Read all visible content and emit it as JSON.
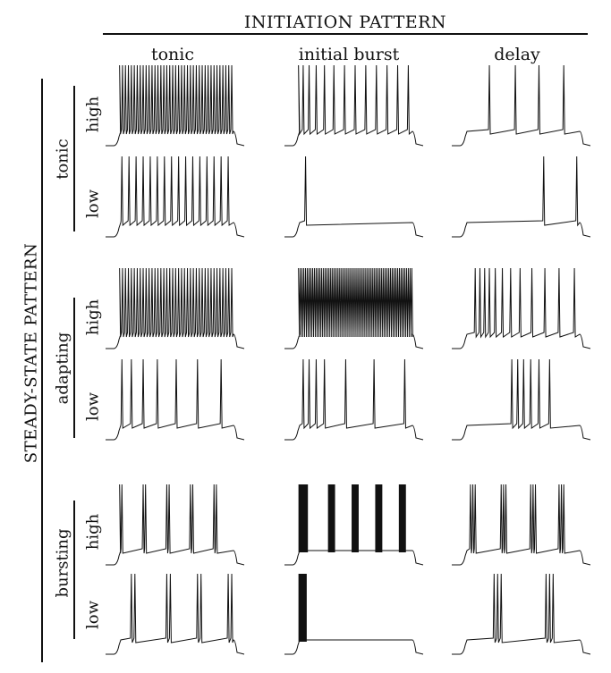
{
  "figure": {
    "title": "INITIATION PATTERN",
    "left_title": "STEADY-STATE PATTERN",
    "columns": [
      "tonic",
      "initial burst",
      "delay"
    ],
    "row_groups": [
      {
        "label": "tonic",
        "levels": [
          "high",
          "low"
        ]
      },
      {
        "label": "adapting",
        "levels": [
          "high",
          "low"
        ]
      },
      {
        "label": "bursting",
        "levels": [
          "high",
          "low"
        ]
      }
    ],
    "line_color": "#111111",
    "traces": [
      {
        "row": "tonic-high",
        "column": "tonic",
        "spike_times": [
          0.02,
          0.045,
          0.07,
          0.095,
          0.12,
          0.145,
          0.17,
          0.195,
          0.22,
          0.245,
          0.27,
          0.295,
          0.32,
          0.345,
          0.37,
          0.395,
          0.42,
          0.445,
          0.47,
          0.495,
          0.52,
          0.545,
          0.57,
          0.595,
          0.62,
          0.645,
          0.67,
          0.695,
          0.72,
          0.745,
          0.77,
          0.795,
          0.82,
          0.845,
          0.87,
          0.895,
          0.92,
          0.945,
          0.97
        ],
        "burst_times": []
      },
      {
        "row": "tonic-high",
        "column": "initial burst",
        "spike_times": [
          0.02,
          0.06,
          0.11,
          0.17,
          0.24,
          0.32,
          0.41,
          0.5,
          0.59,
          0.68,
          0.77,
          0.86,
          0.95
        ],
        "burst_times": []
      },
      {
        "row": "tonic-high",
        "column": "delay",
        "spike_times": [
          0.22,
          0.44,
          0.64,
          0.85
        ],
        "burst_times": []
      },
      {
        "row": "tonic-low",
        "column": "tonic",
        "spike_times": [
          0.04,
          0.1,
          0.16,
          0.22,
          0.28,
          0.34,
          0.4,
          0.46,
          0.52,
          0.58,
          0.64,
          0.7,
          0.76,
          0.82,
          0.88,
          0.94
        ],
        "burst_times": []
      },
      {
        "row": "tonic-low",
        "column": "initial burst",
        "spike_times": [
          0.08
        ],
        "burst_times": []
      },
      {
        "row": "tonic-low",
        "column": "delay",
        "spike_times": [
          0.68,
          0.96
        ],
        "burst_times": []
      },
      {
        "row": "adapting-high",
        "column": "tonic",
        "spike_times": [
          0.02,
          0.045,
          0.07,
          0.095,
          0.12,
          0.145,
          0.17,
          0.195,
          0.22,
          0.245,
          0.27,
          0.295,
          0.32,
          0.345,
          0.37,
          0.395,
          0.42,
          0.445,
          0.47,
          0.495,
          0.52,
          0.545,
          0.57,
          0.595,
          0.62,
          0.645,
          0.67,
          0.695,
          0.72,
          0.745,
          0.77,
          0.795,
          0.82,
          0.845,
          0.87,
          0.895,
          0.92,
          0.945,
          0.97
        ],
        "burst_times": []
      },
      {
        "row": "adapting-high",
        "column": "initial burst",
        "spike_times": [
          0.02,
          0.035,
          0.05,
          0.065,
          0.08,
          0.095,
          0.11,
          0.125,
          0.14,
          0.155,
          0.17,
          0.185,
          0.2,
          0.215,
          0.23,
          0.245,
          0.26,
          0.275,
          0.29,
          0.305,
          0.32,
          0.335,
          0.35,
          0.365,
          0.38,
          0.395,
          0.41,
          0.425,
          0.44,
          0.455,
          0.47,
          0.485,
          0.5,
          0.515,
          0.53,
          0.545,
          0.56,
          0.575,
          0.59,
          0.605,
          0.62,
          0.635,
          0.65,
          0.665,
          0.68,
          0.695,
          0.71,
          0.725,
          0.74,
          0.755,
          0.77,
          0.785,
          0.8,
          0.815,
          0.83,
          0.845,
          0.86,
          0.875,
          0.89,
          0.905,
          0.92,
          0.935,
          0.95,
          0.965,
          0.98
        ],
        "burst_times": []
      },
      {
        "row": "adapting-high",
        "column": "delay",
        "spike_times": [
          0.1,
          0.14,
          0.18,
          0.22,
          0.27,
          0.33,
          0.4,
          0.48,
          0.58,
          0.69,
          0.81,
          0.94
        ],
        "burst_times": []
      },
      {
        "row": "adapting-low",
        "column": "tonic",
        "spike_times": [
          0.04,
          0.12,
          0.22,
          0.34,
          0.5,
          0.68,
          0.88
        ],
        "burst_times": []
      },
      {
        "row": "adapting-low",
        "column": "initial burst",
        "spike_times": [
          0.06,
          0.11,
          0.17,
          0.24,
          0.42,
          0.66,
          0.92
        ],
        "burst_times": []
      },
      {
        "row": "adapting-low",
        "column": "delay",
        "spike_times": [
          0.41,
          0.46,
          0.51,
          0.57,
          0.64,
          0.73
        ],
        "burst_times": []
      },
      {
        "row": "bursting-high",
        "column": "tonic",
        "spike_times": [
          0.02,
          0.04,
          0.22,
          0.24,
          0.42,
          0.44,
          0.62,
          0.64,
          0.82,
          0.84
        ],
        "burst_times": []
      },
      {
        "row": "bursting-high",
        "column": "initial burst",
        "spike_times": [],
        "burst_times": [
          [
            0.02,
            0.1
          ],
          [
            0.27,
            0.33
          ],
          [
            0.47,
            0.53
          ],
          [
            0.67,
            0.73
          ],
          [
            0.87,
            0.93
          ]
        ]
      },
      {
        "row": "bursting-high",
        "column": "delay",
        "spike_times": [
          0.06,
          0.08,
          0.1,
          0.32,
          0.34,
          0.36,
          0.57,
          0.59,
          0.61,
          0.81,
          0.83,
          0.85
        ],
        "burst_times": []
      },
      {
        "row": "bursting-low",
        "column": "tonic",
        "spike_times": [
          0.12,
          0.15,
          0.42,
          0.45,
          0.68,
          0.71,
          0.94,
          0.97
        ],
        "burst_times": []
      },
      {
        "row": "bursting-low",
        "column": "initial burst",
        "spike_times": [],
        "burst_times": [
          [
            0.02,
            0.09
          ]
        ]
      },
      {
        "row": "bursting-low",
        "column": "delay",
        "spike_times": [
          0.26,
          0.29,
          0.32,
          0.7,
          0.73,
          0.76
        ],
        "burst_times": []
      }
    ]
  }
}
